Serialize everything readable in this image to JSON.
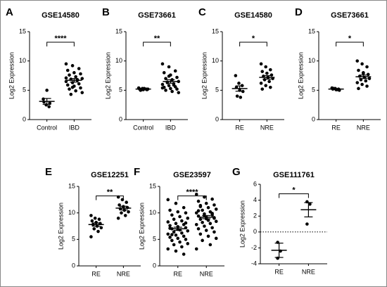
{
  "chart_data": [
    {
      "type": "strip",
      "panel_label": "A",
      "title": "GSE14580",
      "y_label": "Log2 Expression",
      "categories": [
        "Control",
        "IBD"
      ],
      "values": [
        [
          3.5,
          2.5,
          2.2,
          3.0,
          5.0,
          2.8
        ],
        [
          9.5,
          9.2,
          8.7,
          8.4,
          8.0,
          7.8,
          7.6,
          7.3,
          7.0,
          6.9,
          6.7,
          6.5,
          6.3,
          6.1,
          5.9,
          5.7,
          5.4,
          5.2,
          4.9,
          4.6,
          4.3,
          6.8,
          7.1,
          5.5
        ]
      ],
      "means": [
        3.1,
        6.7
      ],
      "errors": [
        0.5,
        0.3
      ],
      "ylim": [
        0,
        15
      ],
      "yticks": [
        0,
        5,
        10,
        15
      ],
      "annotation": "****"
    },
    {
      "type": "strip",
      "panel_label": "B",
      "title": "GSE73661",
      "y_label": "Log2 Expression",
      "categories": [
        "Control",
        "IBD"
      ],
      "values": [
        [
          5.4,
          5.3,
          5.2,
          5.2,
          5.1,
          5.1,
          5.0,
          5.3,
          5.2,
          5.1
        ],
        [
          9.5,
          9.0,
          8.3,
          8.0,
          7.6,
          7.2,
          7.0,
          6.8,
          6.5,
          6.3,
          6.1,
          6.0,
          5.8,
          5.6,
          5.5,
          5.3,
          5.2,
          5.0,
          4.8,
          4.6,
          6.4,
          5.9,
          5.4,
          7.4
        ]
      ],
      "means": [
        5.2,
        6.5
      ],
      "errors": [
        0.04,
        0.3
      ],
      "ylim": [
        0,
        15
      ],
      "yticks": [
        0,
        5,
        10,
        15
      ],
      "annotation": "**"
    },
    {
      "type": "strip",
      "panel_label": "C",
      "title": "GSE14580",
      "y_label": "Log2 Expression",
      "categories": [
        "RE",
        "NRE"
      ],
      "values": [
        [
          7.5,
          6.2,
          5.8,
          5.5,
          5.0,
          4.8,
          4.0,
          3.8
        ],
        [
          9.5,
          9.0,
          8.5,
          8.2,
          7.9,
          7.6,
          7.4,
          7.2,
          7.0,
          6.8,
          6.5,
          6.2,
          5.8,
          5.5,
          5.2
        ]
      ],
      "means": [
        5.3,
        7.2
      ],
      "errors": [
        0.45,
        0.3
      ],
      "ylim": [
        0,
        15
      ],
      "yticks": [
        0,
        5,
        10,
        15
      ],
      "annotation": "*"
    },
    {
      "type": "strip",
      "panel_label": "D",
      "title": "GSE73661",
      "y_label": "Log2 Expression",
      "categories": [
        "RE",
        "NRE"
      ],
      "values": [
        [
          5.4,
          5.3,
          5.2,
          5.2,
          5.1,
          5.0,
          5.3,
          5.1
        ],
        [
          10.0,
          9.5,
          9.0,
          8.4,
          8.0,
          7.7,
          7.4,
          7.2,
          7.0,
          6.8,
          6.6,
          6.3,
          6.0,
          5.7,
          5.3,
          7.9
        ]
      ],
      "means": [
        5.2,
        7.3
      ],
      "errors": [
        0.05,
        0.3
      ],
      "ylim": [
        0,
        15
      ],
      "yticks": [
        0,
        5,
        10,
        15
      ],
      "annotation": "*"
    },
    {
      "type": "strip",
      "panel_label": "E",
      "title": "GSE12251",
      "y_label": "Log2 Expression",
      "categories": [
        "RE",
        "NRE"
      ],
      "values": [
        [
          9.5,
          9.0,
          8.8,
          8.5,
          8.2,
          8.0,
          7.8,
          7.5,
          7.2,
          7.0,
          6.5,
          5.5
        ],
        [
          13.0,
          12.5,
          12.0,
          11.5,
          11.2,
          11.0,
          10.8,
          10.5,
          10.2,
          10.0,
          9.5,
          9.0
        ]
      ],
      "means": [
        7.8,
        10.9
      ],
      "errors": [
        0.3,
        0.35
      ],
      "ylim": [
        0,
        15
      ],
      "yticks": [
        0,
        5,
        10,
        15
      ],
      "annotation": "**"
    },
    {
      "type": "strip",
      "panel_label": "F",
      "title": "GSE23597",
      "y_label": "Log2 Expression",
      "categories": [
        "RE",
        "NRE"
      ],
      "values": [
        [
          12.5,
          11.8,
          11.0,
          10.5,
          10.2,
          10.0,
          9.6,
          9.3,
          9.0,
          8.8,
          8.5,
          8.3,
          8.0,
          7.8,
          7.6,
          7.4,
          7.2,
          7.0,
          6.8,
          6.6,
          6.4,
          6.2,
          6.0,
          5.8,
          5.6,
          5.4,
          5.2,
          5.0,
          4.8,
          4.5,
          4.2,
          4.0,
          3.6,
          3.2,
          2.8,
          2.2,
          7.1,
          6.9,
          8.1,
          5.9
        ],
        [
          13.5,
          13.0,
          12.6,
          12.2,
          11.8,
          11.5,
          11.2,
          11.0,
          10.7,
          10.5,
          10.2,
          10.0,
          9.8,
          9.6,
          9.4,
          9.2,
          9.0,
          8.8,
          8.6,
          8.4,
          8.2,
          8.0,
          7.8,
          7.5,
          7.2,
          7.0,
          6.7,
          6.4,
          6.0,
          5.6,
          5.2,
          4.8,
          4.0,
          3.2,
          9.5,
          9.9,
          10.4,
          8.9,
          9.1,
          11.4
        ]
      ],
      "means": [
        7.0,
        9.2
      ],
      "errors": [
        0.3,
        0.3
      ],
      "ylim": [
        0,
        15
      ],
      "yticks": [
        0,
        5,
        10,
        15
      ],
      "annotation": "****"
    },
    {
      "type": "strip",
      "panel_label": "G",
      "title": "GSE111761",
      "y_label": "Log2 Expression",
      "categories": [
        "RE",
        "NRE"
      ],
      "values": [
        [
          -1.3,
          -2.4,
          -3.3
        ],
        [
          3.8,
          3.5,
          1.0
        ]
      ],
      "means": [
        -2.3,
        2.8
      ],
      "errors": [
        0.9,
        0.9
      ],
      "ylim": [
        -4,
        6
      ],
      "yticks": [
        -4,
        -2,
        0,
        2,
        4,
        6
      ],
      "annotation": "*",
      "zero_line": true
    }
  ]
}
